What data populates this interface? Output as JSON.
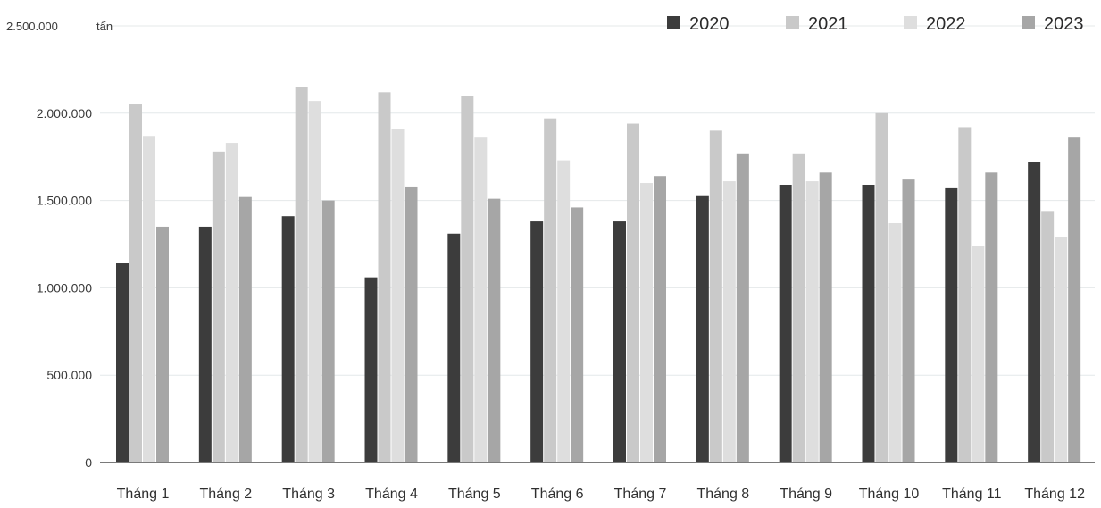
{
  "chart_data": {
    "type": "bar",
    "unit_label": "tấn",
    "categories": [
      "Tháng 1",
      "Tháng 2",
      "Tháng 3",
      "Tháng 4",
      "Tháng 5",
      "Tháng 6",
      "Tháng 7",
      "Tháng 8",
      "Tháng 9",
      "Tháng 10",
      "Tháng 11",
      "Tháng 12"
    ],
    "series": [
      {
        "name": "2020",
        "color": "#3c3c3c",
        "values": [
          1140000,
          1350000,
          1410000,
          1060000,
          1310000,
          1380000,
          1380000,
          1530000,
          1590000,
          1590000,
          1570000,
          1720000
        ]
      },
      {
        "name": "2021",
        "color": "#c9c9c9",
        "values": [
          2050000,
          1780000,
          2150000,
          2120000,
          2100000,
          1970000,
          1940000,
          1900000,
          1770000,
          2000000,
          1920000,
          1440000
        ]
      },
      {
        "name": "2022",
        "color": "#dedede",
        "values": [
          1870000,
          1830000,
          2070000,
          1910000,
          1860000,
          1730000,
          1600000,
          1610000,
          1610000,
          1370000,
          1240000,
          1290000
        ]
      },
      {
        "name": "2023",
        "color": "#a6a6a6",
        "values": [
          1350000,
          1520000,
          1500000,
          1580000,
          1510000,
          1460000,
          1640000,
          1770000,
          1660000,
          1620000,
          1660000,
          1860000
        ]
      }
    ],
    "yticks": [
      0,
      500000,
      1000000,
      1500000,
      2000000,
      2500000
    ],
    "ytick_labels": [
      "0",
      "500.000",
      "1.000.000",
      "1.500.000",
      "2.000.000",
      "2.500.000"
    ],
    "ylim": [
      0,
      2500000
    ],
    "grid": true,
    "legend_position": "top-right"
  }
}
